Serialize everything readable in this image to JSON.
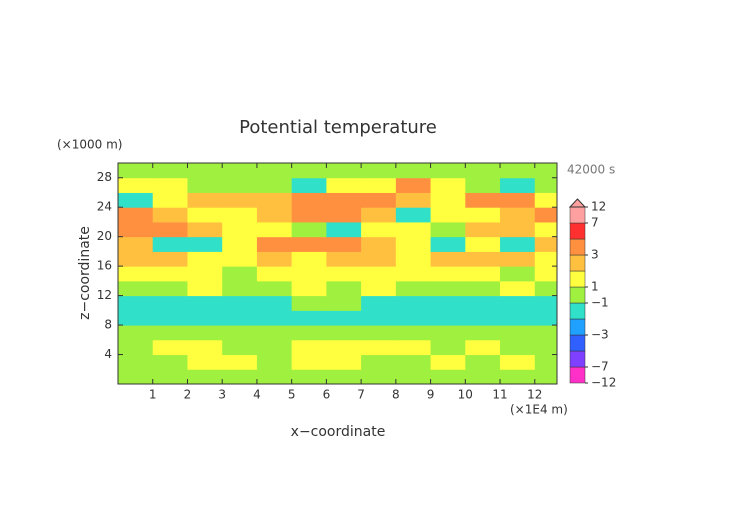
{
  "chart_data": {
    "type": "contour",
    "title": "Potential temperature",
    "x_label": "x−coordinate",
    "y_label": "z−coordinate",
    "x_unit": "(×1E4 m)",
    "y_unit": "(×1000 m)",
    "time_label": "42000 s",
    "xlim": [
      0,
      12.64
    ],
    "ylim": [
      0,
      30
    ],
    "xticks": [
      1,
      2,
      3,
      4,
      5,
      6,
      7,
      8,
      9,
      10,
      11,
      12
    ],
    "yticks": [
      4,
      8,
      12,
      16,
      20,
      24,
      28
    ],
    "x": [
      0.5,
      1.5,
      2.5,
      3.5,
      4.5,
      5.5,
      6.5,
      7.5,
      8.5,
      9.5,
      10.5,
      11.5,
      12.5
    ],
    "z": [
      1,
      3,
      5,
      7,
      9,
      11,
      13,
      15,
      17,
      19,
      21,
      23,
      25,
      27,
      29
    ],
    "values": [
      [
        0,
        0,
        0.5,
        0,
        0,
        0,
        0,
        0,
        0.5,
        0,
        0,
        0.5,
        0
      ],
      [
        0.5,
        0,
        1.5,
        1,
        0.5,
        1.5,
        1.5,
        0,
        0.5,
        1.5,
        0.5,
        1,
        0.5
      ],
      [
        0,
        1.5,
        1.5,
        0,
        0,
        1.5,
        1.5,
        1.5,
        1.5,
        0,
        1.5,
        0.5,
        0
      ],
      [
        0,
        0,
        0,
        -0.5,
        0,
        0,
        0,
        0,
        0,
        0,
        0,
        0,
        0
      ],
      [
        -1.5,
        -1.5,
        -1.5,
        -1.5,
        -1.5,
        -1.5,
        -1.5,
        -1.5,
        -1.5,
        -1.5,
        -1.5,
        -1.5,
        -1.5
      ],
      [
        -1.5,
        -1.5,
        -1.5,
        -1.5,
        -1.5,
        -0.5,
        0,
        -1.5,
        -1.5,
        -1.5,
        -1.5,
        -1.5,
        -1.5
      ],
      [
        0,
        0.5,
        1.5,
        0,
        0,
        1.5,
        0.5,
        1.5,
        0,
        0,
        0.5,
        1.5,
        0
      ],
      [
        1.5,
        1.5,
        1.5,
        0.5,
        1.5,
        1.5,
        1.5,
        1.5,
        1.5,
        1.5,
        1.5,
        0.5,
        1.5
      ],
      [
        2.5,
        2.5,
        1.5,
        1.5,
        2.5,
        1.5,
        2.5,
        2.5,
        1.5,
        2.5,
        2.5,
        2.5,
        1.5
      ],
      [
        2.5,
        -1.5,
        -1.5,
        1.5,
        3.5,
        3.5,
        3.5,
        2.5,
        1.5,
        -1.5,
        1.5,
        -1.5,
        2.5
      ],
      [
        3.5,
        3.5,
        2.5,
        1.5,
        1.5,
        0,
        -1.5,
        1.5,
        1.5,
        0.5,
        2.5,
        2.5,
        1.5
      ],
      [
        3.5,
        2.5,
        1.5,
        1.5,
        2.5,
        3.5,
        3.5,
        2.5,
        -1.5,
        1.5,
        1.5,
        2.5,
        3.5
      ],
      [
        -1.5,
        1.5,
        2.5,
        2.5,
        2.5,
        3.5,
        3.5,
        3.5,
        2.5,
        1.5,
        3.5,
        3.5,
        1.5
      ],
      [
        1.5,
        1.5,
        0,
        0,
        0.5,
        -1.5,
        1.5,
        1.5,
        3.5,
        1.5,
        0,
        -1.5,
        0
      ],
      [
        0,
        0,
        0,
        0,
        0,
        0,
        0,
        0,
        0.5,
        0,
        0,
        0,
        0
      ]
    ],
    "colorbar": {
      "levels": [
        -12,
        -7,
        -5,
        -3,
        -2,
        -1,
        1,
        2,
        3,
        5,
        7,
        12
      ],
      "colors": [
        "#ff30c8",
        "#8040ff",
        "#3060ff",
        "#20a0ff",
        "#30e0c8",
        "#a0f040",
        "#ffff40",
        "#ffc040",
        "#ff9040",
        "#ff3030",
        "#ffa0a0"
      ],
      "ticks": [
        {
          "value": 12,
          "label": "12"
        },
        {
          "value": 7,
          "label": "7"
        },
        {
          "value": 3,
          "label": "3"
        },
        {
          "value": 1,
          "label": "1"
        },
        {
          "value": -1,
          "label": "−1"
        },
        {
          "value": -3,
          "label": "−3"
        },
        {
          "value": -7,
          "label": "−7"
        },
        {
          "value": -12,
          "label": "−12"
        }
      ]
    }
  }
}
